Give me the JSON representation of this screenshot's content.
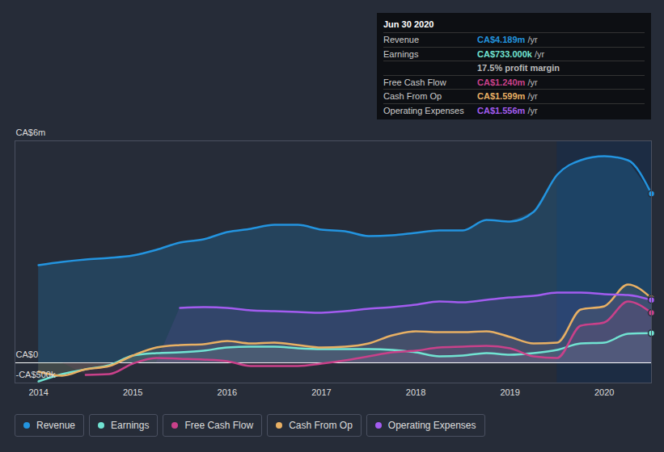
{
  "chart_data": {
    "type": "line",
    "x": [
      2014,
      2014.25,
      2014.5,
      2014.75,
      2015,
      2015.25,
      2015.5,
      2015.75,
      2016,
      2016.25,
      2016.5,
      2016.75,
      2017,
      2017.25,
      2017.5,
      2017.75,
      2018,
      2018.25,
      2018.5,
      2018.75,
      2019,
      2019.25,
      2019.5,
      2019.75,
      2020,
      2020.25,
      2020.5
    ],
    "xlim": [
      2013.75,
      2020.5
    ],
    "xticks": [
      2014,
      2015,
      2016,
      2017,
      2018,
      2019,
      2020
    ],
    "ylim": [
      -0.5,
      5.5
    ],
    "yticks": [
      {
        "value": -0.5,
        "label": "-CA$500k"
      },
      {
        "value": 0,
        "label": "CA$0"
      },
      {
        "value": 5.5,
        "label": "CA$6m"
      }
    ],
    "grid": true,
    "legend": "bottom",
    "shaded_x": [
      2019.5,
      2020.5
    ],
    "series": [
      {
        "name": "Revenue",
        "color": "#2394df",
        "values": [
          2.42,
          2.5,
          2.56,
          2.6,
          2.66,
          2.8,
          2.98,
          3.06,
          3.24,
          3.32,
          3.42,
          3.42,
          3.3,
          3.26,
          3.14,
          3.16,
          3.22,
          3.28,
          3.28,
          3.54,
          3.5,
          3.74,
          4.66,
          5.02,
          5.12,
          5.02,
          4.189
        ]
      },
      {
        "name": "Earnings",
        "color": "#71e3d2",
        "values": [
          -0.46,
          -0.28,
          -0.16,
          -0.06,
          0.18,
          0.24,
          0.26,
          0.3,
          0.38,
          0.4,
          0.4,
          0.36,
          0.34,
          0.34,
          0.34,
          0.32,
          0.26,
          0.16,
          0.18,
          0.24,
          0.2,
          0.24,
          0.32,
          0.48,
          0.5,
          0.72,
          0.733
        ]
      },
      {
        "name": "Free Cash Flow",
        "color": "#c9418a",
        "values": [
          null,
          null,
          -0.3,
          -0.28,
          -0.02,
          0.12,
          0.1,
          0.08,
          0.04,
          -0.08,
          -0.08,
          -0.08,
          -0.02,
          0.06,
          0.16,
          0.26,
          0.3,
          0.38,
          0.4,
          0.42,
          0.36,
          0.16,
          0.12,
          0.92,
          1.0,
          1.52,
          1.24
        ]
      },
      {
        "name": "Cash From Op",
        "color": "#e8b064",
        "values": [
          -0.22,
          -0.32,
          -0.16,
          -0.08,
          0.18,
          0.38,
          0.44,
          0.46,
          0.54,
          0.48,
          0.5,
          0.44,
          0.38,
          0.4,
          0.48,
          0.68,
          0.78,
          0.76,
          0.76,
          0.78,
          0.64,
          0.48,
          0.5,
          1.32,
          1.4,
          1.94,
          1.599
        ]
      },
      {
        "name": "Operating Expenses",
        "color": "#a35cf0",
        "values": [
          null,
          null,
          null,
          null,
          null,
          null,
          1.36,
          1.38,
          1.36,
          1.3,
          1.28,
          1.26,
          1.24,
          1.28,
          1.34,
          1.38,
          1.44,
          1.52,
          1.5,
          1.56,
          1.62,
          1.66,
          1.74,
          1.74,
          1.7,
          1.68,
          1.556
        ]
      }
    ],
    "tooltip": {
      "title": "Jun 30 2020",
      "rows": [
        {
          "name": "Revenue",
          "value": "CA$4.189m",
          "unit": "/yr"
        },
        {
          "name": "Earnings",
          "value": "CA$733.000k",
          "unit": "/yr",
          "note": "17.5% profit margin"
        },
        {
          "name": "Free Cash Flow",
          "value": "CA$1.240m",
          "unit": "/yr"
        },
        {
          "name": "Cash From Op",
          "value": "CA$1.599m",
          "unit": "/yr"
        },
        {
          "name": "Operating Expenses",
          "value": "CA$1.556m",
          "unit": "/yr"
        }
      ]
    }
  }
}
